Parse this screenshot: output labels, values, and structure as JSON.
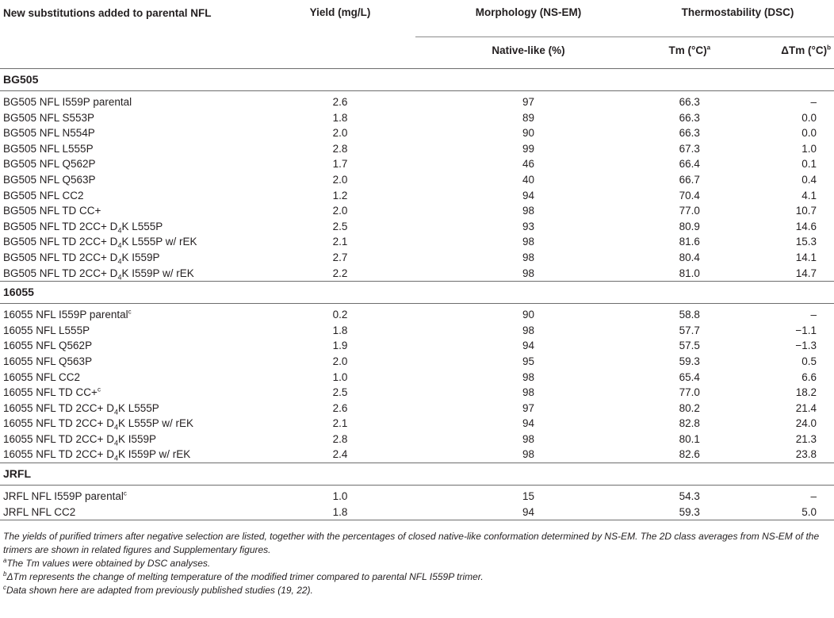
{
  "header": {
    "col1": "New substitutions added to parental NFL",
    "col2": "Yield (mg/L)",
    "col3": "Morphology (NS-EM)",
    "col3_sub": "Native-like (%)",
    "col45": "Thermostability (DSC)",
    "col4_sub": "Tm (°C)",
    "col4_sup": "a",
    "col5_sub": "ΔTm (°C)",
    "col5_sup": "b"
  },
  "groups": [
    {
      "name": "BG505",
      "rows": [
        {
          "construct": "BG505 NFL I559P parental",
          "yield": "2.6",
          "native": "97",
          "tm": "66.3",
          "dtm": "–"
        },
        {
          "construct": "BG505 NFL S553P",
          "yield": "1.8",
          "native": "89",
          "tm": "66.3",
          "dtm": "0.0"
        },
        {
          "construct": "BG505 NFL N554P",
          "yield": "2.0",
          "native": "90",
          "tm": "66.3",
          "dtm": "0.0"
        },
        {
          "construct": "BG505 NFL L555P",
          "yield": "2.8",
          "native": "99",
          "tm": "67.3",
          "dtm": "1.0"
        },
        {
          "construct": "BG505 NFL Q562P",
          "yield": "1.7",
          "native": "46",
          "tm": "66.4",
          "dtm": "0.1"
        },
        {
          "construct": "BG505 NFL Q563P",
          "yield": "2.0",
          "native": "40",
          "tm": "66.7",
          "dtm": "0.4"
        },
        {
          "construct": "BG505 NFL CC2",
          "yield": "1.2",
          "native": "94",
          "tm": "70.4",
          "dtm": "4.1"
        },
        {
          "construct": "BG505 NFL TD CC+",
          "yield": "2.0",
          "native": "98",
          "tm": "77.0",
          "dtm": "10.7"
        },
        {
          "construct": "BG505 NFL TD 2CC+ D4K L555P",
          "yield": "2.5",
          "native": "93",
          "tm": "80.9",
          "dtm": "14.6"
        },
        {
          "construct": "BG505 NFL TD 2CC+ D4K L555P w/ rEK",
          "yield": "2.1",
          "native": "98",
          "tm": "81.6",
          "dtm": "15.3"
        },
        {
          "construct": "BG505 NFL TD 2CC+ D4K I559P",
          "yield": "2.7",
          "native": "98",
          "tm": "80.4",
          "dtm": "14.1"
        },
        {
          "construct": "BG505 NFL TD 2CC+ D4K I559P w/ rEK",
          "yield": "2.2",
          "native": "98",
          "tm": "81.0",
          "dtm": "14.7"
        }
      ]
    },
    {
      "name": "16055",
      "rows": [
        {
          "construct": "16055 NFL I559P parental",
          "sup": "c",
          "yield": "0.2",
          "native": "90",
          "tm": "58.8",
          "dtm": "–"
        },
        {
          "construct": "16055 NFL L555P",
          "yield": "1.8",
          "native": "98",
          "tm": "57.7",
          "dtm": "−1.1"
        },
        {
          "construct": "16055 NFL Q562P",
          "yield": "1.9",
          "native": "94",
          "tm": "57.5",
          "dtm": "−1.3"
        },
        {
          "construct": "16055 NFL Q563P",
          "yield": "2.0",
          "native": "95",
          "tm": "59.3",
          "dtm": "0.5"
        },
        {
          "construct": "16055 NFL CC2",
          "yield": "1.0",
          "native": "98",
          "tm": "65.4",
          "dtm": "6.6"
        },
        {
          "construct": "16055 NFL TD CC+",
          "sup": "c",
          "yield": "2.5",
          "native": "98",
          "tm": "77.0",
          "dtm": "18.2"
        },
        {
          "construct": "16055 NFL TD 2CC+ D4K L555P",
          "yield": "2.6",
          "native": "97",
          "tm": "80.2",
          "dtm": "21.4"
        },
        {
          "construct": "16055 NFL TD 2CC+ D4K L555P w/ rEK",
          "yield": "2.1",
          "native": "94",
          "tm": "82.8",
          "dtm": "24.0"
        },
        {
          "construct": "16055 NFL TD 2CC+ D4K I559P",
          "yield": "2.8",
          "native": "98",
          "tm": "80.1",
          "dtm": "21.3"
        },
        {
          "construct": "16055 NFL TD 2CC+ D4K I559P w/ rEK",
          "yield": "2.4",
          "native": "98",
          "tm": "82.6",
          "dtm": "23.8"
        }
      ]
    },
    {
      "name": "JRFL",
      "rows": [
        {
          "construct": "JRFL NFL I559P parental",
          "sup": "c",
          "yield": "1.0",
          "native": "15",
          "tm": "54.3",
          "dtm": "–"
        },
        {
          "construct": "JRFL NFL CC2",
          "yield": "1.8",
          "native": "94",
          "tm": "59.3",
          "dtm": "5.0"
        }
      ]
    }
  ],
  "notes": {
    "main": "The yields of purified trimers after negative selection are listed, together with the percentages of closed native-like conformation determined by NS-EM. The 2D class averages from NS-EM of the trimers are shown in related figures and Supplementary figures.",
    "a": "The Tm values were obtained by DSC analyses.",
    "b": "ΔTm represents the change of melting temperature of the modified trimer compared to parental NFL I559P trimer.",
    "c": "Data shown here are adapted from previously published studies (19, 22)."
  }
}
